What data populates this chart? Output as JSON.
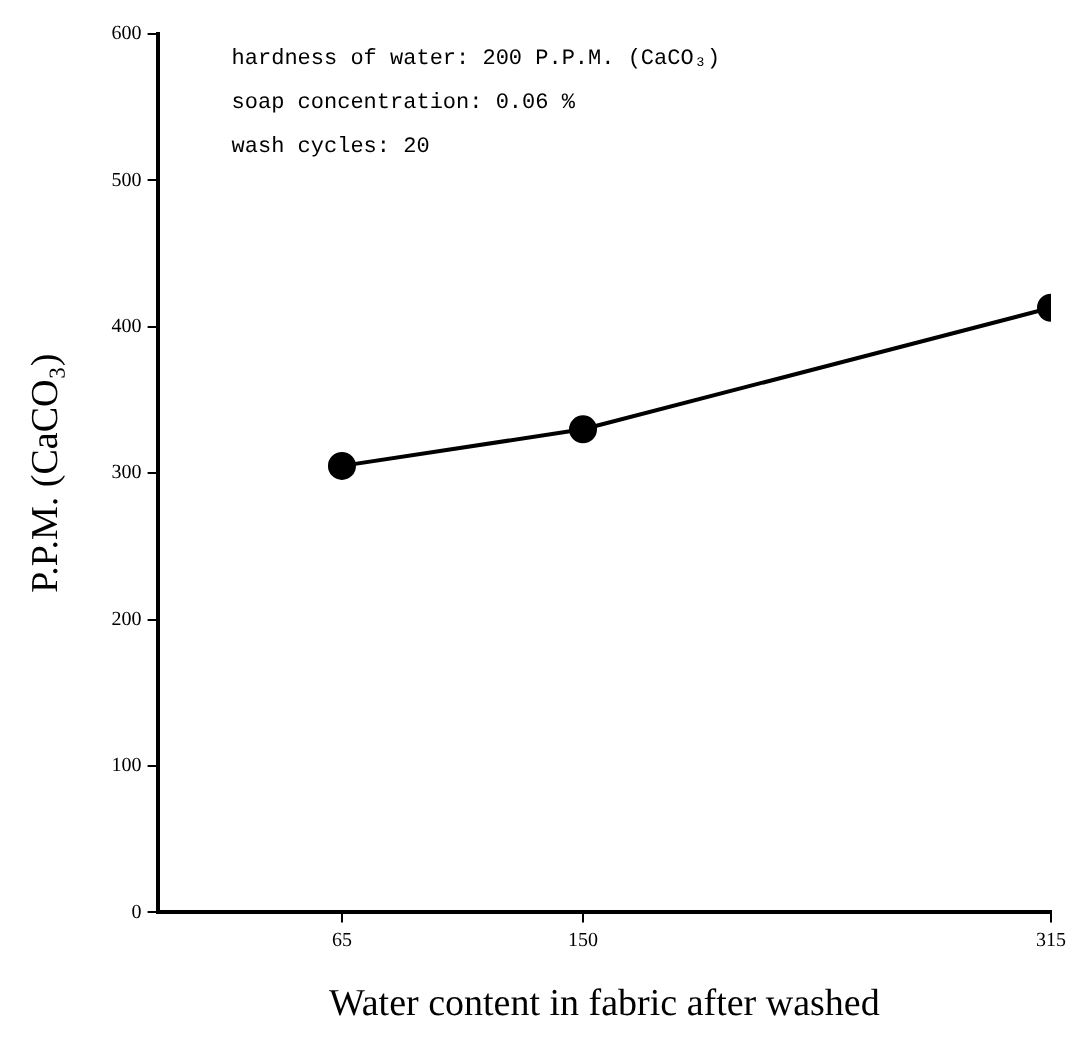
{
  "chart_data": {
    "type": "line",
    "xlabel": "Water content in fabric after washed",
    "ylabel": "P.P.M. (CaCO₃)",
    "annotations": [
      "hardness of water: 200 P.P.M. (CaCO₃)",
      "soap concentration: 0.06 %",
      "wash cycles: 20"
    ],
    "x": [
      65,
      150,
      315
    ],
    "series": [
      {
        "color": "#000000",
        "values": [
          305,
          330,
          413
        ]
      }
    ],
    "xlim": [
      0,
      315
    ],
    "xticks": [
      65,
      150,
      315
    ],
    "ylim": [
      0,
      600
    ],
    "yticks": [
      0,
      100,
      200,
      300,
      400,
      500,
      600
    ],
    "grid": false,
    "legend": false,
    "marker": "circle",
    "line_style": "solid"
  }
}
